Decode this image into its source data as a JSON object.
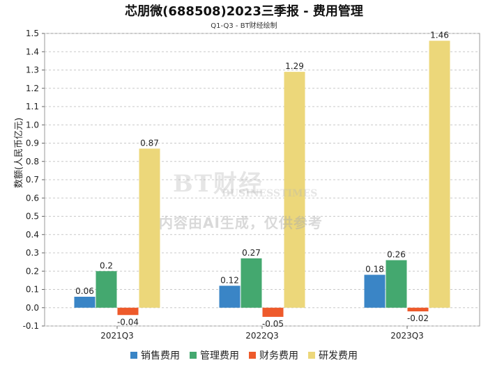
{
  "chart_data": {
    "type": "bar",
    "title": "芯朋微(688508)2023三季报 - 费用管理",
    "subtitle": "Q1-Q3 - BT财经绘制",
    "xlabel": "",
    "ylabel": "数额(人民币亿元)",
    "categories": [
      "2021Q3",
      "2022Q3",
      "2023Q3"
    ],
    "series": [
      {
        "name": "销售费用",
        "color": "#3a85c6",
        "values": [
          0.06,
          0.12,
          0.18
        ]
      },
      {
        "name": "管理费用",
        "color": "#44a86f",
        "values": [
          0.2,
          0.27,
          0.26
        ]
      },
      {
        "name": "财务费用",
        "color": "#ee5a2b",
        "values": [
          -0.04,
          -0.05,
          -0.02
        ]
      },
      {
        "name": "研发费用",
        "color": "#ecd77a",
        "values": [
          0.87,
          1.29,
          1.46
        ]
      }
    ],
    "ylim": [
      -0.1,
      1.5
    ],
    "yticks": [
      "-0.1",
      "0.0",
      "0.1",
      "0.2",
      "0.3",
      "0.4",
      "0.5",
      "0.6",
      "0.7",
      "0.8",
      "0.9",
      "1.0",
      "1.1",
      "1.2",
      "1.3",
      "1.4",
      "1.5"
    ],
    "grid": true,
    "legend": "bottom"
  },
  "watermark": {
    "brand": "BT财经",
    "brand_en": "BUSINESSTIMES",
    "notice": "内容由AI生成，仅供参考"
  }
}
